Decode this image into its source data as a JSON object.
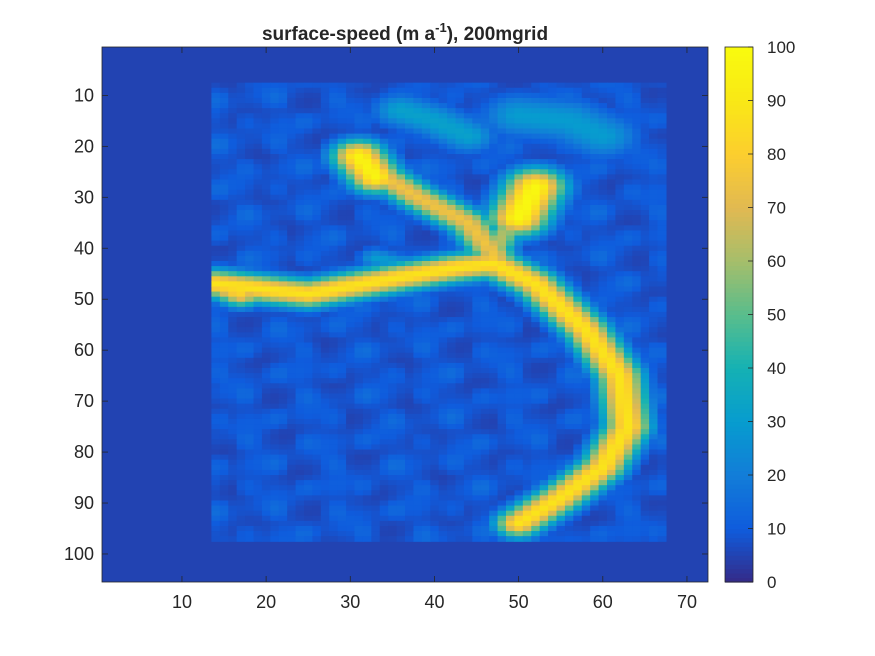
{
  "chart_data": {
    "type": "heatmap",
    "title_main": "surface-speed (m a",
    "title_sup": "-1",
    "title_tail": "), 200mgrid",
    "xlim": [
      0.5,
      72.5
    ],
    "ylim": [
      0.5,
      105.5
    ],
    "y_reversed": true,
    "xticks": [
      10,
      20,
      30,
      40,
      50,
      60,
      70
    ],
    "yticks": [
      10,
      20,
      30,
      40,
      50,
      60,
      70,
      80,
      90,
      100
    ],
    "colorbar": {
      "limits": [
        0,
        100
      ],
      "ticks": [
        0,
        10,
        20,
        30,
        40,
        50,
        60,
        70,
        80,
        90,
        100
      ],
      "colormap": "parula"
    },
    "data_extent": {
      "x": [
        13.5,
        67
      ],
      "y": [
        8,
        97
      ]
    },
    "background_value": 5,
    "features": [
      {
        "name": "main trunk",
        "path": [
          [
            14,
            47
          ],
          [
            25,
            49
          ],
          [
            35,
            46
          ],
          [
            42,
            44
          ],
          [
            47,
            43
          ],
          [
            52,
            47
          ],
          [
            58,
            56
          ],
          [
            62,
            65
          ],
          [
            63,
            75
          ],
          [
            60,
            83
          ],
          [
            55,
            89
          ],
          [
            50,
            94
          ]
        ],
        "peak": 88,
        "width": 2.0
      },
      {
        "name": "upper-left branch",
        "path": [
          [
            32,
            24
          ],
          [
            38,
            30
          ],
          [
            44,
            35
          ],
          [
            47,
            41
          ]
        ],
        "peak": 75,
        "width": 1.9
      },
      {
        "name": "upper-left glacier head",
        "path": [
          [
            31,
            22
          ],
          [
            33,
            26
          ]
        ],
        "peak": 96,
        "width": 2.3
      },
      {
        "name": "upper-right glacier head",
        "path": [
          [
            52,
            28
          ],
          [
            50,
            34
          ]
        ],
        "peak": 98,
        "width": 2.6
      },
      {
        "name": "upper-right tributary",
        "path": [
          [
            49,
            35
          ],
          [
            47,
            41
          ]
        ],
        "peak": 62,
        "width": 1.6
      },
      {
        "name": "middle-left tributary",
        "path": [
          [
            33,
            42
          ],
          [
            38,
            44
          ]
        ],
        "peak": 30,
        "width": 1.5
      },
      {
        "name": "top-right basin",
        "path": [
          [
            50,
            14
          ],
          [
            56,
            15
          ],
          [
            60,
            18
          ]
        ],
        "peak": 30,
        "width": 3.2
      },
      {
        "name": "top-center basin",
        "path": [
          [
            36,
            13
          ],
          [
            40,
            15
          ],
          [
            44,
            18
          ]
        ],
        "peak": 32,
        "width": 2.5
      },
      {
        "name": "left tongue",
        "path": [
          [
            14,
            47
          ],
          [
            17,
            49
          ]
        ],
        "peak": 82,
        "width": 1.8
      }
    ]
  }
}
